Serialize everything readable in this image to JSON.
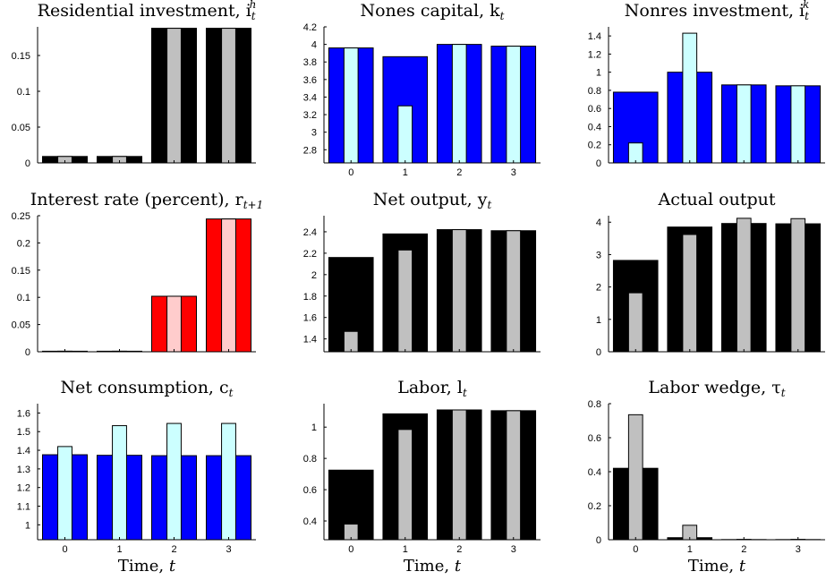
{
  "x_axis_label": "Time, t",
  "chart_data": [
    {
      "type": "bar",
      "title": "Residential investment, i",
      "title_sup": "h",
      "title_sub": "t",
      "categories": [
        "0",
        "1",
        "2",
        "3"
      ],
      "show_x_tick_labels": false,
      "show_x_axis_label": false,
      "ylim": [
        0,
        0.19
      ],
      "yticks": [
        0,
        0.05,
        0.1,
        0.15
      ],
      "ytick_labels": [
        "0",
        "0.05",
        "0.1",
        "0.15"
      ],
      "colors": {
        "wide": "#000000",
        "narrow": "#c0c0c0"
      },
      "series": [
        {
          "values": [
            0.009,
            0.009,
            0.188,
            0.188
          ]
        },
        {
          "values": [
            0.009,
            0.009,
            0.188,
            0.188
          ]
        }
      ]
    },
    {
      "type": "bar",
      "title": "Nones capital, k",
      "title_sub": "t",
      "categories": [
        "0",
        "1",
        "2",
        "3"
      ],
      "show_x_tick_labels": true,
      "show_x_axis_label": false,
      "ylim": [
        2.65,
        4.2
      ],
      "yticks": [
        2.8,
        3,
        3.2,
        3.4,
        3.6,
        3.8,
        4,
        4.2
      ],
      "ytick_labels": [
        "2.8",
        "3",
        "3.2",
        "3.4",
        "3.6",
        "3.8",
        "4",
        "4.2"
      ],
      "colors": {
        "wide": "#0000ff",
        "narrow": "#ccffff"
      },
      "series": [
        {
          "values": [
            3.96,
            3.86,
            4.0,
            3.98
          ]
        },
        {
          "values": [
            3.96,
            3.3,
            4.0,
            3.98
          ]
        }
      ]
    },
    {
      "type": "bar",
      "title": "Nonres investment, i",
      "title_sup": "k",
      "title_sub": "t",
      "categories": [
        "0",
        "1",
        "2",
        "3"
      ],
      "show_x_tick_labels": false,
      "show_x_axis_label": false,
      "ylim": [
        0,
        1.5
      ],
      "yticks": [
        0,
        0.2,
        0.4,
        0.6,
        0.8,
        1,
        1.2,
        1.4
      ],
      "ytick_labels": [
        "0",
        "0.2",
        "0.4",
        "0.6",
        "0.8",
        "1",
        "1.2",
        "1.4"
      ],
      "colors": {
        "wide": "#0000ff",
        "narrow": "#ccffff"
      },
      "series": [
        {
          "values": [
            0.78,
            1.0,
            0.86,
            0.85
          ]
        },
        {
          "values": [
            0.22,
            1.43,
            0.86,
            0.85
          ]
        }
      ]
    },
    {
      "type": "bar",
      "title": "Interest rate (percent), r",
      "title_sub": "t+1",
      "categories": [
        "0",
        "1",
        "2",
        "3"
      ],
      "show_x_tick_labels": false,
      "show_x_axis_label": false,
      "ylim": [
        0,
        0.25
      ],
      "yticks": [
        0,
        0.05,
        0.1,
        0.15,
        0.2,
        0.25
      ],
      "ytick_labels": [
        "0",
        "0.05",
        "0.1",
        "0.15",
        "0.2",
        "0.25"
      ],
      "colors": {
        "wide": "#ff0000",
        "narrow": "#ffcccc"
      },
      "series": [
        {
          "values": [
            0.001,
            0.001,
            0.102,
            0.244
          ]
        },
        {
          "values": [
            0.001,
            0.001,
            0.102,
            0.244
          ]
        }
      ]
    },
    {
      "type": "bar",
      "title": "Net output, y",
      "title_sub": "t",
      "categories": [
        "0",
        "1",
        "2",
        "3"
      ],
      "show_x_tick_labels": false,
      "show_x_axis_label": false,
      "ylim": [
        1.28,
        2.55
      ],
      "yticks": [
        1.4,
        1.6,
        1.8,
        2,
        2.2,
        2.4
      ],
      "ytick_labels": [
        "1.4",
        "1.6",
        "1.8",
        "2",
        "2.2",
        "2.4"
      ],
      "colors": {
        "wide": "#000000",
        "narrow": "#c0c0c0"
      },
      "series": [
        {
          "values": [
            2.16,
            2.38,
            2.42,
            2.41
          ]
        },
        {
          "values": [
            1.47,
            2.23,
            2.42,
            2.41
          ]
        }
      ]
    },
    {
      "type": "bar",
      "title": "Actual output",
      "categories": [
        "0",
        "1",
        "2",
        "3"
      ],
      "show_x_tick_labels": false,
      "show_x_axis_label": false,
      "ylim": [
        0,
        4.2
      ],
      "yticks": [
        0,
        1,
        2,
        3,
        4
      ],
      "ytick_labels": [
        "0",
        "1",
        "2",
        "3",
        "4"
      ],
      "colors": {
        "wide": "#000000",
        "narrow": "#c0c0c0"
      },
      "series": [
        {
          "values": [
            2.82,
            3.85,
            3.96,
            3.95
          ]
        },
        {
          "values": [
            1.82,
            3.62,
            4.12,
            4.11
          ]
        }
      ]
    },
    {
      "type": "bar",
      "title": "Net consumption, c",
      "title_sub": "t",
      "categories": [
        "0",
        "1",
        "2",
        "3"
      ],
      "show_x_tick_labels": true,
      "show_x_axis_label": true,
      "ylim": [
        0.92,
        1.65
      ],
      "yticks": [
        1,
        1.1,
        1.2,
        1.3,
        1.4,
        1.5,
        1.6
      ],
      "ytick_labels": [
        "1",
        "1.1",
        "1.2",
        "1.3",
        "1.4",
        "1.5",
        "1.6"
      ],
      "colors": {
        "wide": "#0000ff",
        "narrow": "#ccffff"
      },
      "series": [
        {
          "values": [
            1.376,
            1.373,
            1.371,
            1.371
          ]
        },
        {
          "values": [
            1.42,
            1.532,
            1.544,
            1.544
          ]
        }
      ]
    },
    {
      "type": "bar",
      "title": "Labor, l",
      "title_sub": "t",
      "categories": [
        "0",
        "1",
        "2",
        "3"
      ],
      "show_x_tick_labels": true,
      "show_x_axis_label": true,
      "ylim": [
        0.28,
        1.15
      ],
      "yticks": [
        0.4,
        0.6,
        0.8,
        1
      ],
      "ytick_labels": [
        "0.4",
        "0.6",
        "0.8",
        "1"
      ],
      "colors": {
        "wide": "#000000",
        "narrow": "#c0c0c0"
      },
      "series": [
        {
          "values": [
            0.725,
            1.085,
            1.11,
            1.105
          ]
        },
        {
          "values": [
            0.38,
            0.985,
            1.11,
            1.105
          ]
        }
      ]
    },
    {
      "type": "bar",
      "title": "Labor wedge, τ",
      "title_sub": "t",
      "categories": [
        "0",
        "1",
        "2",
        "3"
      ],
      "show_x_tick_labels": true,
      "show_x_axis_label": true,
      "ylim": [
        0,
        0.8
      ],
      "yticks": [
        0,
        0.2,
        0.4,
        0.6,
        0.8
      ],
      "ytick_labels": [
        "0",
        "0.2",
        "0.4",
        "0.6",
        "0.8"
      ],
      "colors": {
        "wide": "#000000",
        "narrow": "#c0c0c0"
      },
      "series": [
        {
          "values": [
            0.42,
            0.012,
            0.001,
            0.001
          ]
        },
        {
          "values": [
            0.735,
            0.085,
            0.002,
            0.002
          ]
        }
      ]
    }
  ]
}
